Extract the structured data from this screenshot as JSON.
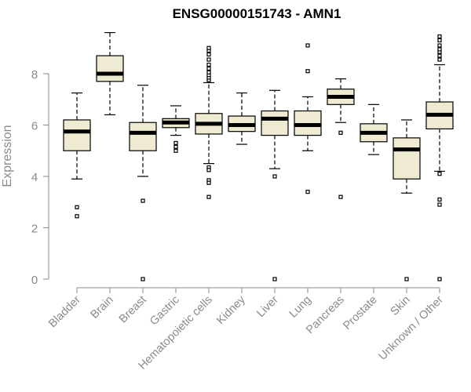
{
  "chart_data": {
    "type": "box",
    "title": "ENSG00000151743 - AMN1",
    "ylabel": "Expression",
    "xlabel": "",
    "ylim": [
      0,
      9.7
    ],
    "yticks": [
      0,
      2,
      4,
      6,
      8
    ],
    "grid": false,
    "box_fill": "#efead2",
    "box_stroke": "#000000",
    "categories": [
      "Bladder",
      "Brain",
      "Breast",
      "Gastric",
      "Hematopoietic cells",
      "Kidney",
      "Liver",
      "Lung",
      "Pancreas",
      "Prostate",
      "Skin",
      "Unknown / Other"
    ],
    "boxes": [
      {
        "category": "Bladder",
        "whisker_low": 3.9,
        "q1": 5.0,
        "median": 5.75,
        "q3": 6.2,
        "whisker_high": 7.25,
        "outliers": [
          2.45,
          2.8
        ]
      },
      {
        "category": "Brain",
        "whisker_low": 6.4,
        "q1": 7.7,
        "median": 8.0,
        "q3": 8.7,
        "whisker_high": 9.6,
        "outliers": []
      },
      {
        "category": "Breast",
        "whisker_low": 4.0,
        "q1": 5.0,
        "median": 5.7,
        "q3": 6.1,
        "whisker_high": 7.55,
        "outliers": [
          3.05,
          0.0
        ]
      },
      {
        "category": "Gastric",
        "whisker_low": 5.6,
        "q1": 5.9,
        "median": 6.1,
        "q3": 6.25,
        "whisker_high": 6.75,
        "outliers": [
          5.0,
          5.15,
          5.3
        ]
      },
      {
        "category": "Hematopoietic cells",
        "whisker_low": 4.5,
        "q1": 5.65,
        "median": 6.05,
        "q3": 6.45,
        "whisker_high": 7.65,
        "outliers": [
          7.75,
          7.85,
          7.95,
          8.05,
          8.2,
          8.35,
          8.55,
          8.75,
          8.9,
          9.0,
          4.35,
          4.25,
          3.85,
          3.75,
          3.2
        ]
      },
      {
        "category": "Kidney",
        "whisker_low": 5.25,
        "q1": 5.75,
        "median": 6.0,
        "q3": 6.35,
        "whisker_high": 7.25,
        "outliers": []
      },
      {
        "category": "Liver",
        "whisker_low": 4.3,
        "q1": 5.6,
        "median": 6.25,
        "q3": 6.55,
        "whisker_high": 7.35,
        "outliers": [
          4.0,
          0.0
        ]
      },
      {
        "category": "Lung",
        "whisker_low": 5.0,
        "q1": 5.6,
        "median": 6.0,
        "q3": 6.55,
        "whisker_high": 7.1,
        "outliers": [
          9.1,
          8.1,
          3.4
        ]
      },
      {
        "category": "Pancreas",
        "whisker_low": 6.1,
        "q1": 6.8,
        "median": 7.1,
        "q3": 7.4,
        "whisker_high": 7.8,
        "outliers": [
          5.7,
          3.2
        ]
      },
      {
        "category": "Prostate",
        "whisker_low": 4.85,
        "q1": 5.35,
        "median": 5.7,
        "q3": 6.05,
        "whisker_high": 6.8,
        "outliers": []
      },
      {
        "category": "Skin",
        "whisker_low": 3.35,
        "q1": 3.9,
        "median": 5.05,
        "q3": 5.5,
        "whisker_high": 6.2,
        "outliers": [
          0.0
        ]
      },
      {
        "category": "Unknown / Other",
        "whisker_low": 4.2,
        "q1": 5.85,
        "median": 6.4,
        "q3": 6.9,
        "whisker_high": 8.35,
        "outliers": [
          8.55,
          8.7,
          8.85,
          8.95,
          9.1,
          9.3,
          9.45,
          4.1,
          3.1,
          2.9,
          0.0
        ]
      }
    ]
  }
}
